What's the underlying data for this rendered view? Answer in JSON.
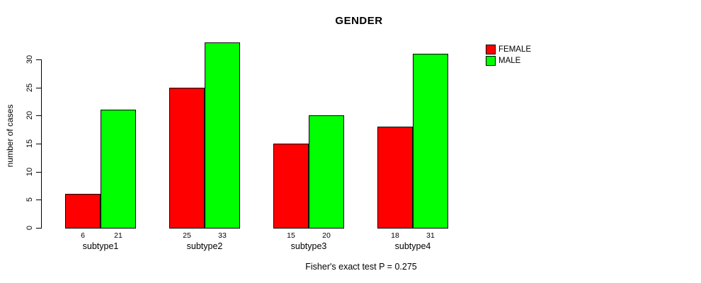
{
  "chart_data": {
    "type": "bar",
    "title": "GENDER",
    "xlabel": "",
    "ylabel": "number of cases",
    "categories": [
      "subtype1",
      "subtype2",
      "subtype3",
      "subtype4"
    ],
    "series": [
      {
        "name": "FEMALE",
        "color": "#ff0000",
        "values": [
          6,
          25,
          15,
          18
        ]
      },
      {
        "name": "MALE",
        "color": "#00ff00",
        "values": [
          21,
          33,
          20,
          31
        ]
      }
    ],
    "yticks": [
      0,
      5,
      10,
      15,
      20,
      25,
      30
    ],
    "ylim": [
      0,
      33
    ],
    "bar_value_labels": [
      [
        6,
        21
      ],
      [
        25,
        33
      ],
      [
        15,
        20
      ],
      [
        18,
        31
      ]
    ],
    "grid": false,
    "legend_position": "right-of-plot-top",
    "legend_entries": [
      "FEMALE",
      "MALE"
    ],
    "annotation": "Fisher's exact test P = 0.275",
    "bar_border_color": "#000000",
    "axis_color": "#000000",
    "background_color": "#ffffff"
  }
}
